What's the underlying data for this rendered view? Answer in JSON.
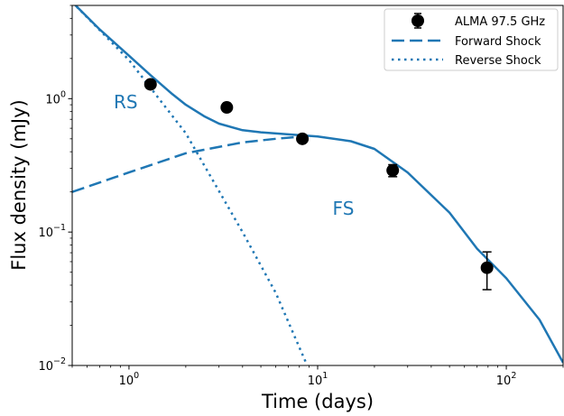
{
  "chart_data": {
    "type": "scatter",
    "xlabel": "Time (days)",
    "ylabel": "Flux density (mJy)",
    "xscale": "log",
    "yscale": "log",
    "xlim": [
      0.5,
      200
    ],
    "ylim": [
      0.01,
      5
    ],
    "xticks": [
      {
        "value": 1,
        "base": "10",
        "exp": "0"
      },
      {
        "value": 10,
        "base": "10",
        "exp": "1"
      },
      {
        "value": 100,
        "base": "10",
        "exp": "2"
      }
    ],
    "yticks": [
      {
        "value": 0.01,
        "base": "10",
        "exp": "−2"
      },
      {
        "value": 0.1,
        "base": "10",
        "exp": "−1"
      },
      {
        "value": 1,
        "base": "10",
        "exp": "0"
      }
    ],
    "legend_position": "top-right",
    "series": [
      {
        "name": "ALMA 97.5 GHz",
        "kind": "errorbar",
        "color": "#000000",
        "points": [
          {
            "x": 1.3,
            "y": 1.28,
            "yerr_lo": 0.0,
            "yerr_hi": 0.0
          },
          {
            "x": 3.3,
            "y": 0.86,
            "yerr_lo": 0.0,
            "yerr_hi": 0.0
          },
          {
            "x": 8.3,
            "y": 0.5,
            "yerr_lo": 0.0,
            "yerr_hi": 0.0
          },
          {
            "x": 25.0,
            "y": 0.29,
            "yerr_lo": 0.03,
            "yerr_hi": 0.03
          },
          {
            "x": 79.0,
            "y": 0.054,
            "yerr_lo": 0.017,
            "yerr_hi": 0.017
          }
        ]
      },
      {
        "name": "Forward Shock",
        "kind": "line",
        "style": "dashed",
        "color": "#1f77b4",
        "points": [
          {
            "x": 0.5,
            "y": 0.2
          },
          {
            "x": 1.0,
            "y": 0.28
          },
          {
            "x": 2.0,
            "y": 0.39
          },
          {
            "x": 4.0,
            "y": 0.47
          },
          {
            "x": 6.0,
            "y": 0.5
          },
          {
            "x": 8.3,
            "y": 0.52
          }
        ]
      },
      {
        "name": "Reverse Shock",
        "kind": "line",
        "style": "dotted",
        "color": "#1f77b4",
        "points": [
          {
            "x": 0.5,
            "y": 5.3
          },
          {
            "x": 1.0,
            "y": 1.95
          },
          {
            "x": 2.0,
            "y": 0.55
          },
          {
            "x": 4.0,
            "y": 0.1
          },
          {
            "x": 6.0,
            "y": 0.035
          },
          {
            "x": 8.8,
            "y": 0.01
          }
        ]
      },
      {
        "name": "",
        "kind": "line",
        "style": "solid",
        "color": "#1f77b4",
        "points": [
          {
            "x": 0.5,
            "y": 5.3
          },
          {
            "x": 0.7,
            "y": 3.3
          },
          {
            "x": 1.0,
            "y": 2.1
          },
          {
            "x": 1.3,
            "y": 1.5
          },
          {
            "x": 1.7,
            "y": 1.08
          },
          {
            "x": 2.0,
            "y": 0.9
          },
          {
            "x": 2.5,
            "y": 0.74
          },
          {
            "x": 3.0,
            "y": 0.65
          },
          {
            "x": 4.0,
            "y": 0.58
          },
          {
            "x": 5.0,
            "y": 0.56
          },
          {
            "x": 7.0,
            "y": 0.54
          },
          {
            "x": 10.0,
            "y": 0.52
          },
          {
            "x": 15.0,
            "y": 0.48
          },
          {
            "x": 20.0,
            "y": 0.42
          },
          {
            "x": 30.0,
            "y": 0.28
          },
          {
            "x": 50.0,
            "y": 0.14
          },
          {
            "x": 70.0,
            "y": 0.075
          },
          {
            "x": 100.0,
            "y": 0.045
          },
          {
            "x": 150.0,
            "y": 0.022
          },
          {
            "x": 200.0,
            "y": 0.0105
          }
        ]
      }
    ],
    "annotations": [
      {
        "text": "RS",
        "x": 0.83,
        "y": 0.85
      },
      {
        "text": "FS",
        "x": 12.0,
        "y": 0.135
      }
    ]
  }
}
